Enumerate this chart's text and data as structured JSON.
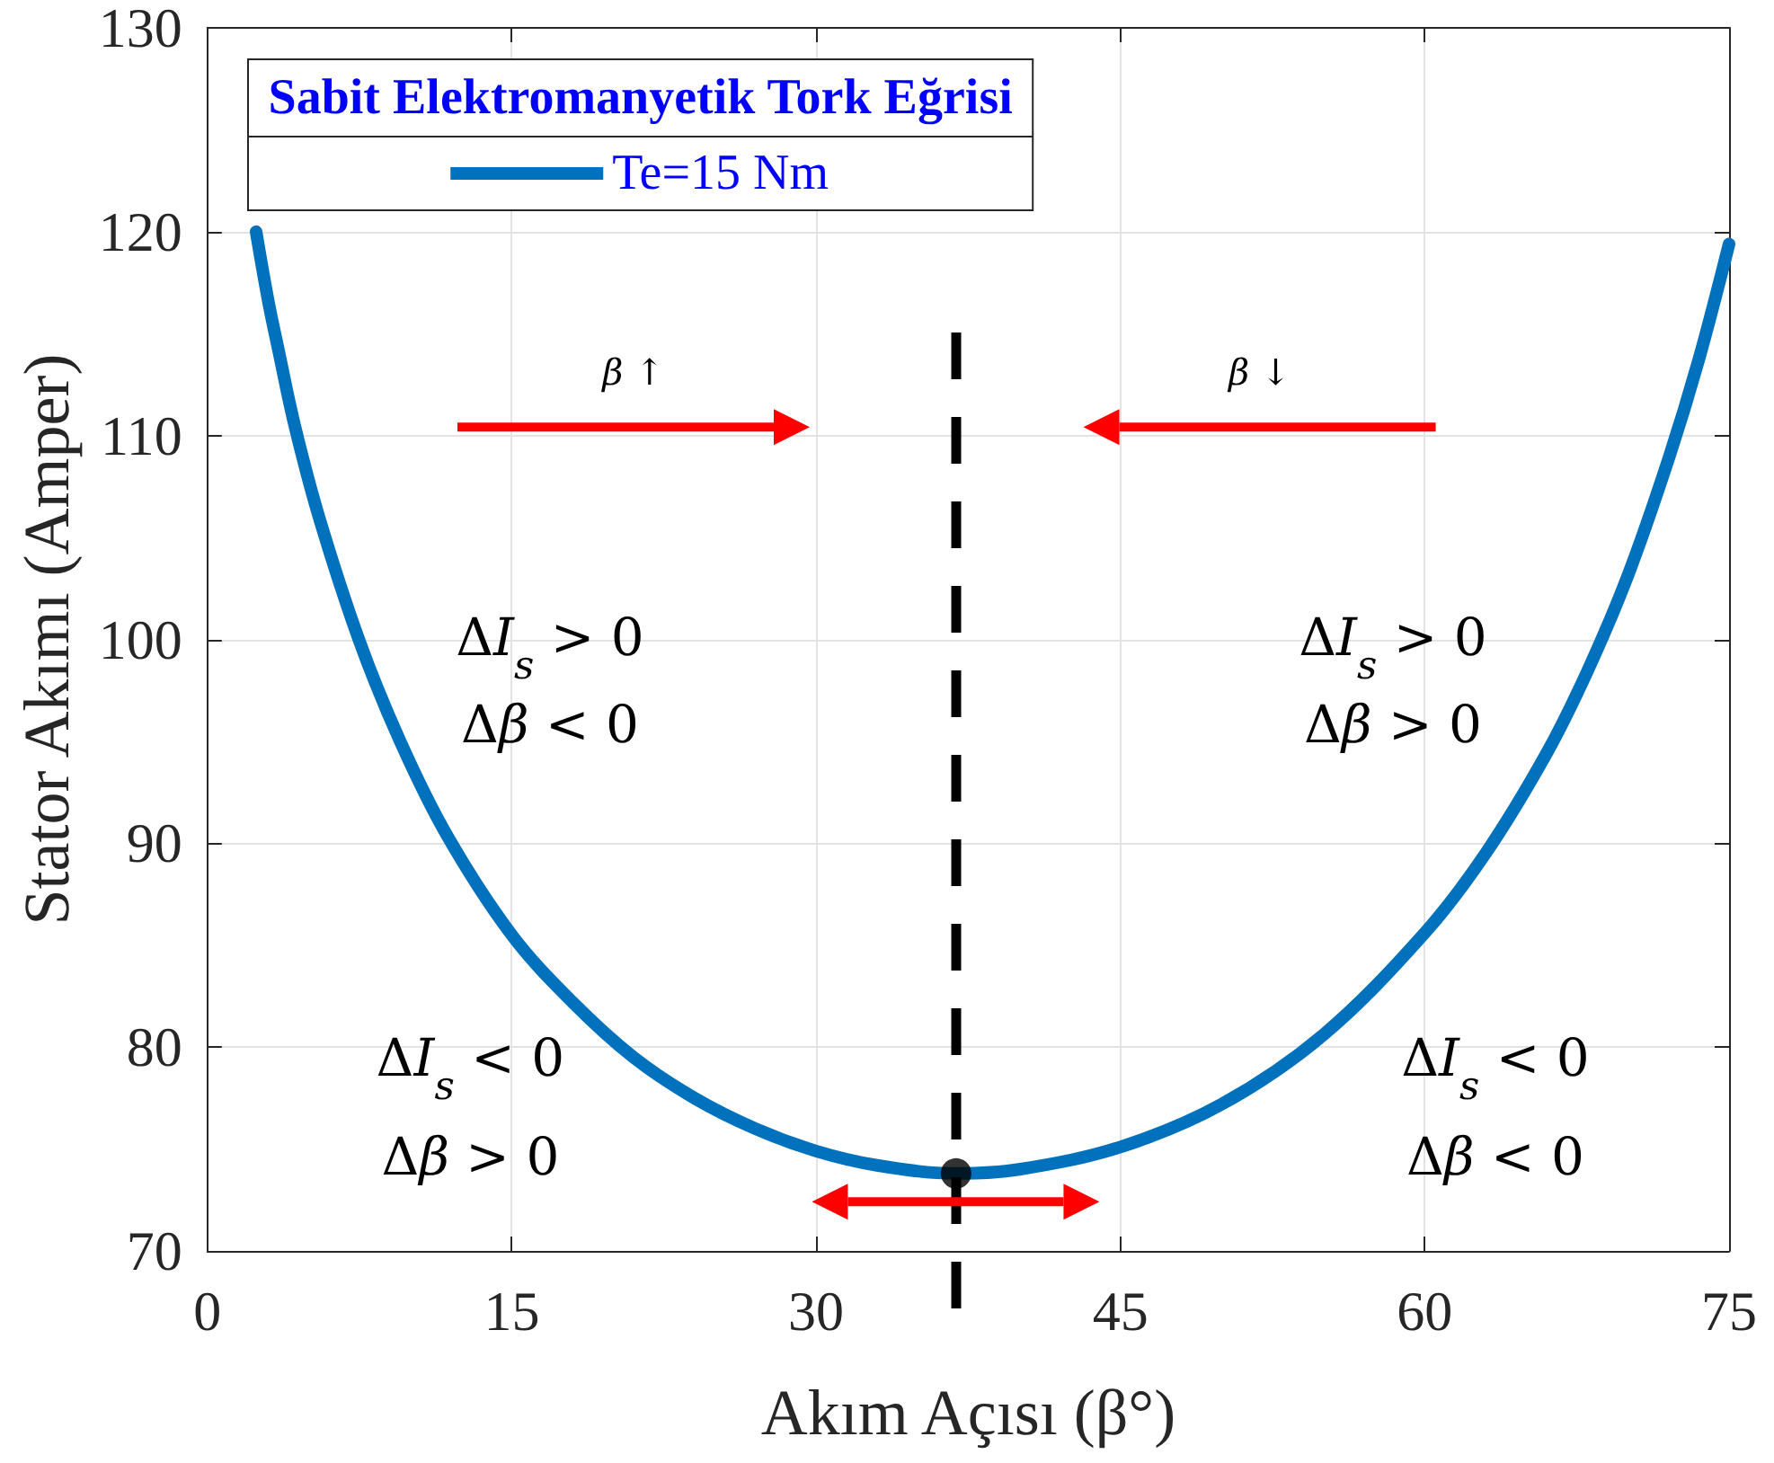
{
  "chart_data": {
    "type": "line",
    "xlabel": "Akım Açısı (β°)",
    "ylabel": "Stator Akımı (Amper)",
    "legend_title": "Sabit Elektromanyetik Tork Eğrisi",
    "legend": "top left",
    "grid": true,
    "xlim": [
      0,
      75
    ],
    "xticks": [
      0,
      15,
      30,
      45,
      60,
      75
    ],
    "ylim": [
      70,
      130
    ],
    "yticks": [
      70,
      80,
      90,
      100,
      110,
      120,
      130
    ],
    "series": [
      {
        "name": "Te=15 Nm",
        "color": "#0072bd",
        "x": [
          2.4,
          3.0,
          3.5,
          4.3,
          5.5,
          7.5,
          9.5,
          11.8,
          15,
          18,
          21,
          24,
          27,
          30,
          33,
          36.9,
          40,
          45,
          50,
          55,
          60,
          63,
          66,
          68,
          70,
          72,
          73.5,
          75
        ],
        "values": [
          120.0,
          116.6,
          114.2,
          110.5,
          106.0,
          99.9,
          95.0,
          90.4,
          85.5,
          82.2,
          79.5,
          77.5,
          76.0,
          74.9,
          74.2,
          73.8,
          74.0,
          75.1,
          77.2,
          80.6,
          85.6,
          89.5,
          94.4,
          98.4,
          103.1,
          108.8,
          113.7,
          119.4
        ]
      },
      {
        "type": "scatter",
        "color": "#000000",
        "marker": "circle",
        "x": [
          36.9
        ],
        "values": [
          73.8
        ]
      }
    ],
    "ref_lines": [
      {
        "axis": "x",
        "value": 36.9,
        "color": "#000000",
        "line_style": "dashed"
      }
    ],
    "annotations": [
      "β ↑",
      "β ↓",
      "ΔI$_{s}$ > 0",
      "Δβ < 0",
      "ΔI$_{s}$ > 0",
      "Δβ > 0",
      "ΔI$_{s}$ < 0",
      "Δβ > 0",
      "ΔI$_{s}$ < 0",
      "Δβ < 0"
    ]
  }
}
